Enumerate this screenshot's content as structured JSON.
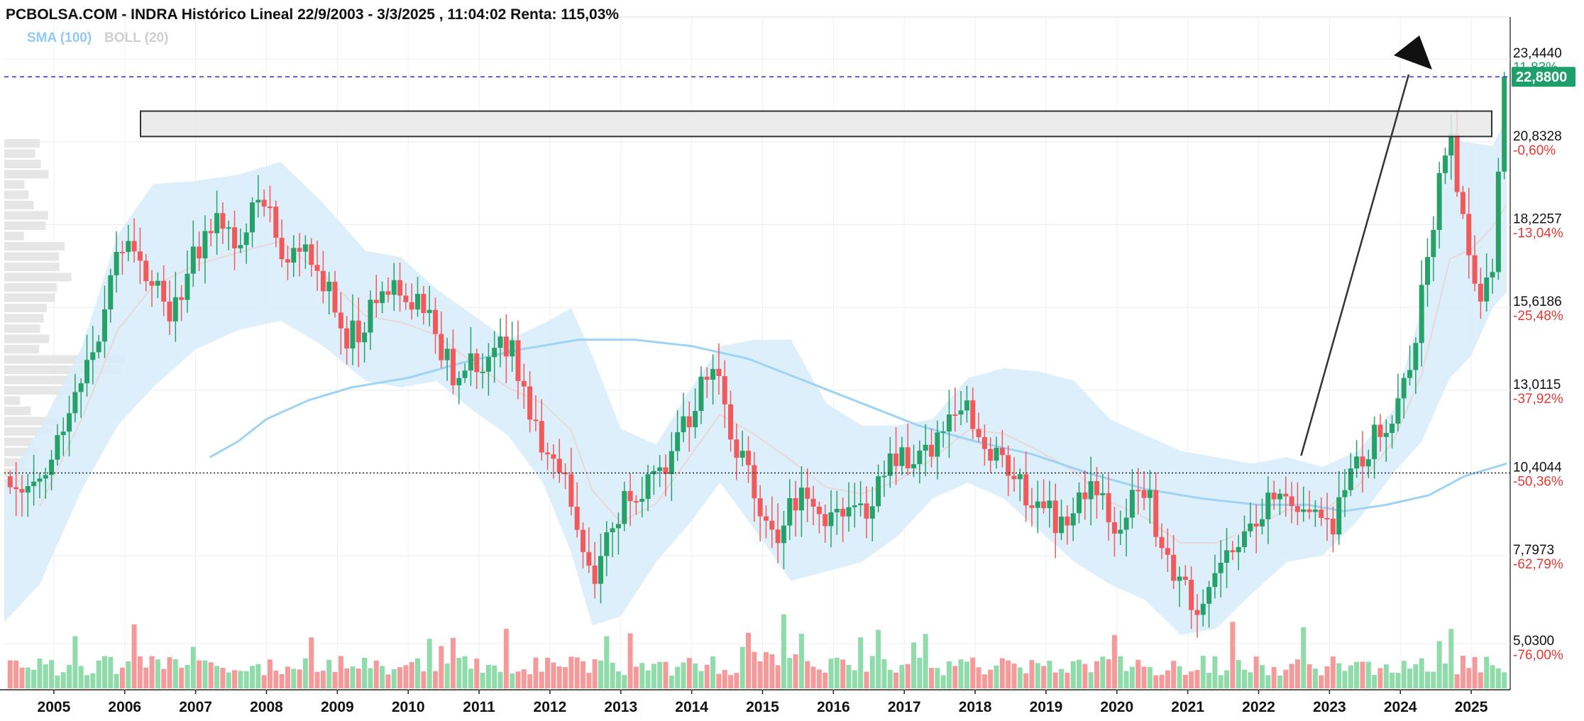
{
  "header": {
    "title": "PCBOLSA.COM - INDRA Histórico Lineal 22/9/2003 - 3/3/2025 , 11:04:02 Renta: 115,03%",
    "indicator_sma": "SMA (100)",
    "indicator_boll": "BOLL (20)"
  },
  "colors": {
    "up": "#26a269",
    "down": "#f05a5a",
    "vol_up": "#8fdcaa",
    "vol_down": "#f59a9a",
    "band_fill": "#d8ecfb",
    "sma_line": "#9fd3f5",
    "boll_mid": "#e8d8d8",
    "last_price_bg": "#1e9e6a",
    "last_price_line": "#2b2bff",
    "percent_negative": "#e53935",
    "percent_positive": "#1e9e6a",
    "profile_bar": "#e6e6e6"
  },
  "chart_data": {
    "type": "candlestick",
    "title": "PCBOLSA.COM - INDRA Histórico Lineal 22/9/2003 - 3/3/2025 , 11:04:02 Renta: 115,03%",
    "ylim": [
      5.03,
      23.44
    ],
    "x_range": [
      2004.3,
      2025.55
    ],
    "x_ticks": [
      "2005",
      "2006",
      "2007",
      "2008",
      "2009",
      "2010",
      "2011",
      "2012",
      "2013",
      "2014",
      "2015",
      "2016",
      "2017",
      "2018",
      "2019",
      "2020",
      "2021",
      "2022",
      "2023",
      "2024",
      "2025"
    ],
    "y_ticks": [
      {
        "value": "23,4440",
        "pct": "11,83%",
        "v": 23.444
      },
      {
        "value": "20,8328",
        "pct": "-0,60%",
        "v": 20.8328
      },
      {
        "value": "18,2257",
        "pct": "-13,04%",
        "v": 18.2257
      },
      {
        "value": "15,6186",
        "pct": "-25,48%",
        "v": 15.6186
      },
      {
        "value": "13,0115",
        "pct": "-37,92%",
        "v": 13.0115
      },
      {
        "value": "10,4044",
        "pct": "-50,36%",
        "v": 10.4044
      },
      {
        "value": "7,7973",
        "pct": "-62,79%",
        "v": 7.7973
      },
      {
        "value": "5,0300",
        "pct": "-76,00%",
        "v": 5.03
      }
    ],
    "last_price": "22,8800",
    "reference_level": 10.4044,
    "resistance_zone": [
      21.0,
      21.8
    ],
    "price_points": [
      [
        2004.3,
        10.3
      ],
      [
        2004.6,
        10.1
      ],
      [
        2004.9,
        10.6
      ],
      [
        2005.1,
        11.6
      ],
      [
        2005.3,
        12.6
      ],
      [
        2005.5,
        13.8
      ],
      [
        2005.8,
        16.3
      ],
      [
        2006.0,
        17.9
      ],
      [
        2006.2,
        16.8
      ],
      [
        2006.4,
        16.4
      ],
      [
        2006.6,
        15.4
      ],
      [
        2006.8,
        16.2
      ],
      [
        2007.0,
        17.3
      ],
      [
        2007.2,
        18.4
      ],
      [
        2007.4,
        18.1
      ],
      [
        2007.6,
        17.5
      ],
      [
        2007.8,
        18.6
      ],
      [
        2007.95,
        19.3
      ],
      [
        2008.1,
        18.0
      ],
      [
        2008.3,
        16.9
      ],
      [
        2008.5,
        17.6
      ],
      [
        2008.7,
        17.1
      ],
      [
        2008.9,
        15.9
      ],
      [
        2009.1,
        14.6
      ],
      [
        2009.3,
        14.9
      ],
      [
        2009.5,
        15.6
      ],
      [
        2009.7,
        16.4
      ],
      [
        2009.9,
        16.2
      ],
      [
        2010.1,
        15.7
      ],
      [
        2010.3,
        15.1
      ],
      [
        2010.5,
        14.1
      ],
      [
        2010.7,
        13.2
      ],
      [
        2010.9,
        14.1
      ],
      [
        2011.1,
        13.5
      ],
      [
        2011.3,
        14.6
      ],
      [
        2011.5,
        14.1
      ],
      [
        2011.7,
        12.3
      ],
      [
        2011.9,
        11.4
      ],
      [
        2012.1,
        10.6
      ],
      [
        2012.3,
        9.6
      ],
      [
        2012.5,
        7.7
      ],
      [
        2012.65,
        7.3
      ],
      [
        2012.8,
        8.4
      ],
      [
        2013.0,
        9.4
      ],
      [
        2013.2,
        9.9
      ],
      [
        2013.4,
        10.1
      ],
      [
        2013.6,
        10.6
      ],
      [
        2013.8,
        11.6
      ],
      [
        2014.0,
        12.4
      ],
      [
        2014.2,
        13.6
      ],
      [
        2014.4,
        13.1
      ],
      [
        2014.6,
        11.4
      ],
      [
        2014.8,
        10.3
      ],
      [
        2015.0,
        9.1
      ],
      [
        2015.2,
        8.4
      ],
      [
        2015.4,
        9.4
      ],
      [
        2015.6,
        10.1
      ],
      [
        2015.8,
        9.3
      ],
      [
        2016.0,
        9.0
      ],
      [
        2016.2,
        9.6
      ],
      [
        2016.4,
        9.1
      ],
      [
        2016.6,
        9.8
      ],
      [
        2016.8,
        10.6
      ],
      [
        2017.0,
        11.1
      ],
      [
        2017.2,
        10.6
      ],
      [
        2017.4,
        11.4
      ],
      [
        2017.6,
        12.1
      ],
      [
        2017.8,
        12.8
      ],
      [
        2018.0,
        12.1
      ],
      [
        2018.2,
        11.0
      ],
      [
        2018.4,
        10.6
      ],
      [
        2018.6,
        10.1
      ],
      [
        2018.8,
        9.6
      ],
      [
        2019.0,
        9.4
      ],
      [
        2019.2,
        8.6
      ],
      [
        2019.4,
        9.4
      ],
      [
        2019.6,
        10.1
      ],
      [
        2019.8,
        9.6
      ],
      [
        2020.0,
        8.6
      ],
      [
        2020.2,
        9.4
      ],
      [
        2020.4,
        10.1
      ],
      [
        2020.6,
        8.1
      ],
      [
        2020.8,
        7.3
      ],
      [
        2021.0,
        6.6
      ],
      [
        2021.15,
        6.2
      ],
      [
        2021.3,
        7.1
      ],
      [
        2021.5,
        7.5
      ],
      [
        2021.7,
        8.1
      ],
      [
        2021.9,
        8.6
      ],
      [
        2022.1,
        9.4
      ],
      [
        2022.3,
        9.9
      ],
      [
        2022.5,
        9.1
      ],
      [
        2022.7,
        9.6
      ],
      [
        2022.9,
        9.1
      ],
      [
        2023.0,
        8.5
      ],
      [
        2023.2,
        9.6
      ],
      [
        2023.4,
        10.6
      ],
      [
        2023.6,
        11.4
      ],
      [
        2023.8,
        11.9
      ],
      [
        2024.0,
        12.9
      ],
      [
        2024.2,
        14.6
      ],
      [
        2024.4,
        17.4
      ],
      [
        2024.55,
        19.6
      ],
      [
        2024.7,
        21.0
      ],
      [
        2024.85,
        18.9
      ],
      [
        2025.0,
        16.4
      ],
      [
        2025.15,
        15.9
      ],
      [
        2025.3,
        16.6
      ],
      [
        2025.4,
        20.4
      ],
      [
        2025.5,
        22.88
      ]
    ],
    "sma_points": [
      [
        2007.2,
        10.9
      ],
      [
        2007.6,
        11.4
      ],
      [
        2008.0,
        12.1
      ],
      [
        2008.6,
        12.7
      ],
      [
        2009.2,
        13.1
      ],
      [
        2010.0,
        13.4
      ],
      [
        2010.8,
        13.9
      ],
      [
        2011.6,
        14.3
      ],
      [
        2012.4,
        14.6
      ],
      [
        2013.2,
        14.6
      ],
      [
        2014.0,
        14.4
      ],
      [
        2014.8,
        14.0
      ],
      [
        2015.6,
        13.3
      ],
      [
        2016.4,
        12.6
      ],
      [
        2017.2,
        11.9
      ],
      [
        2018.0,
        11.4
      ],
      [
        2018.8,
        11.0
      ],
      [
        2019.6,
        10.4
      ],
      [
        2020.4,
        9.9
      ],
      [
        2021.2,
        9.6
      ],
      [
        2022.0,
        9.4
      ],
      [
        2022.7,
        9.4
      ],
      [
        2023.2,
        9.2
      ],
      [
        2023.8,
        9.4
      ],
      [
        2024.4,
        9.7
      ],
      [
        2024.9,
        10.3
      ],
      [
        2025.5,
        10.7
      ]
    ],
    "boll_upper": [
      [
        2004.3,
        10.1
      ],
      [
        2004.8,
        11.8
      ],
      [
        2005.4,
        14.4
      ],
      [
        2005.9,
        17.9
      ],
      [
        2006.4,
        19.5
      ],
      [
        2007.0,
        19.6
      ],
      [
        2007.6,
        19.8
      ],
      [
        2008.2,
        20.2
      ],
      [
        2008.8,
        18.9
      ],
      [
        2009.4,
        17.4
      ],
      [
        2009.9,
        17.2
      ],
      [
        2010.4,
        16.2
      ],
      [
        2010.9,
        15.4
      ],
      [
        2011.4,
        14.6
      ],
      [
        2011.9,
        15.1
      ],
      [
        2012.3,
        15.6
      ],
      [
        2012.6,
        14.1
      ],
      [
        2013.0,
        11.8
      ],
      [
        2013.5,
        11.3
      ],
      [
        2014.0,
        13.1
      ],
      [
        2014.4,
        14.4
      ],
      [
        2014.9,
        14.6
      ],
      [
        2015.4,
        14.6
      ],
      [
        2015.9,
        12.6
      ],
      [
        2016.4,
        11.9
      ],
      [
        2016.9,
        11.9
      ],
      [
        2017.4,
        12.1
      ],
      [
        2017.9,
        13.4
      ],
      [
        2018.4,
        13.7
      ],
      [
        2018.9,
        13.6
      ],
      [
        2019.4,
        13.3
      ],
      [
        2019.9,
        12.1
      ],
      [
        2020.4,
        11.6
      ],
      [
        2020.9,
        11.1
      ],
      [
        2021.4,
        10.9
      ],
      [
        2021.9,
        10.7
      ],
      [
        2022.4,
        10.9
      ],
      [
        2022.9,
        10.6
      ],
      [
        2023.4,
        11.1
      ],
      [
        2023.9,
        12.4
      ],
      [
        2024.3,
        15.6
      ],
      [
        2024.7,
        20.9
      ],
      [
        2025.0,
        20.8
      ],
      [
        2025.3,
        20.7
      ],
      [
        2025.5,
        21.6
      ]
    ],
    "boll_lower": [
      [
        2004.3,
        5.7
      ],
      [
        2004.8,
        6.9
      ],
      [
        2005.4,
        9.9
      ],
      [
        2005.9,
        11.9
      ],
      [
        2006.4,
        13.1
      ],
      [
        2007.0,
        14.3
      ],
      [
        2007.6,
        14.9
      ],
      [
        2008.2,
        15.2
      ],
      [
        2008.8,
        14.4
      ],
      [
        2009.4,
        13.3
      ],
      [
        2009.9,
        13.1
      ],
      [
        2010.4,
        13.3
      ],
      [
        2010.9,
        12.4
      ],
      [
        2011.4,
        11.6
      ],
      [
        2011.9,
        10.1
      ],
      [
        2012.3,
        7.9
      ],
      [
        2012.6,
        5.6
      ],
      [
        2013.0,
        5.9
      ],
      [
        2013.5,
        7.6
      ],
      [
        2014.0,
        8.9
      ],
      [
        2014.4,
        10.1
      ],
      [
        2014.9,
        8.6
      ],
      [
        2015.4,
        7.0
      ],
      [
        2015.9,
        7.3
      ],
      [
        2016.4,
        7.6
      ],
      [
        2016.9,
        8.4
      ],
      [
        2017.4,
        9.6
      ],
      [
        2017.9,
        10.1
      ],
      [
        2018.4,
        9.6
      ],
      [
        2018.9,
        8.6
      ],
      [
        2019.4,
        7.6
      ],
      [
        2019.9,
        6.9
      ],
      [
        2020.4,
        6.4
      ],
      [
        2020.9,
        5.3
      ],
      [
        2021.4,
        5.5
      ],
      [
        2021.9,
        6.6
      ],
      [
        2022.4,
        7.6
      ],
      [
        2022.9,
        7.8
      ],
      [
        2023.4,
        8.9
      ],
      [
        2023.9,
        10.4
      ],
      [
        2024.3,
        11.4
      ],
      [
        2024.7,
        13.4
      ],
      [
        2025.0,
        14.1
      ],
      [
        2025.3,
        15.6
      ],
      [
        2025.5,
        16.1
      ]
    ],
    "arrow": {
      "from": [
        2022.6,
        10.95
      ],
      "to": [
        2024.8,
        23.9
      ]
    }
  }
}
